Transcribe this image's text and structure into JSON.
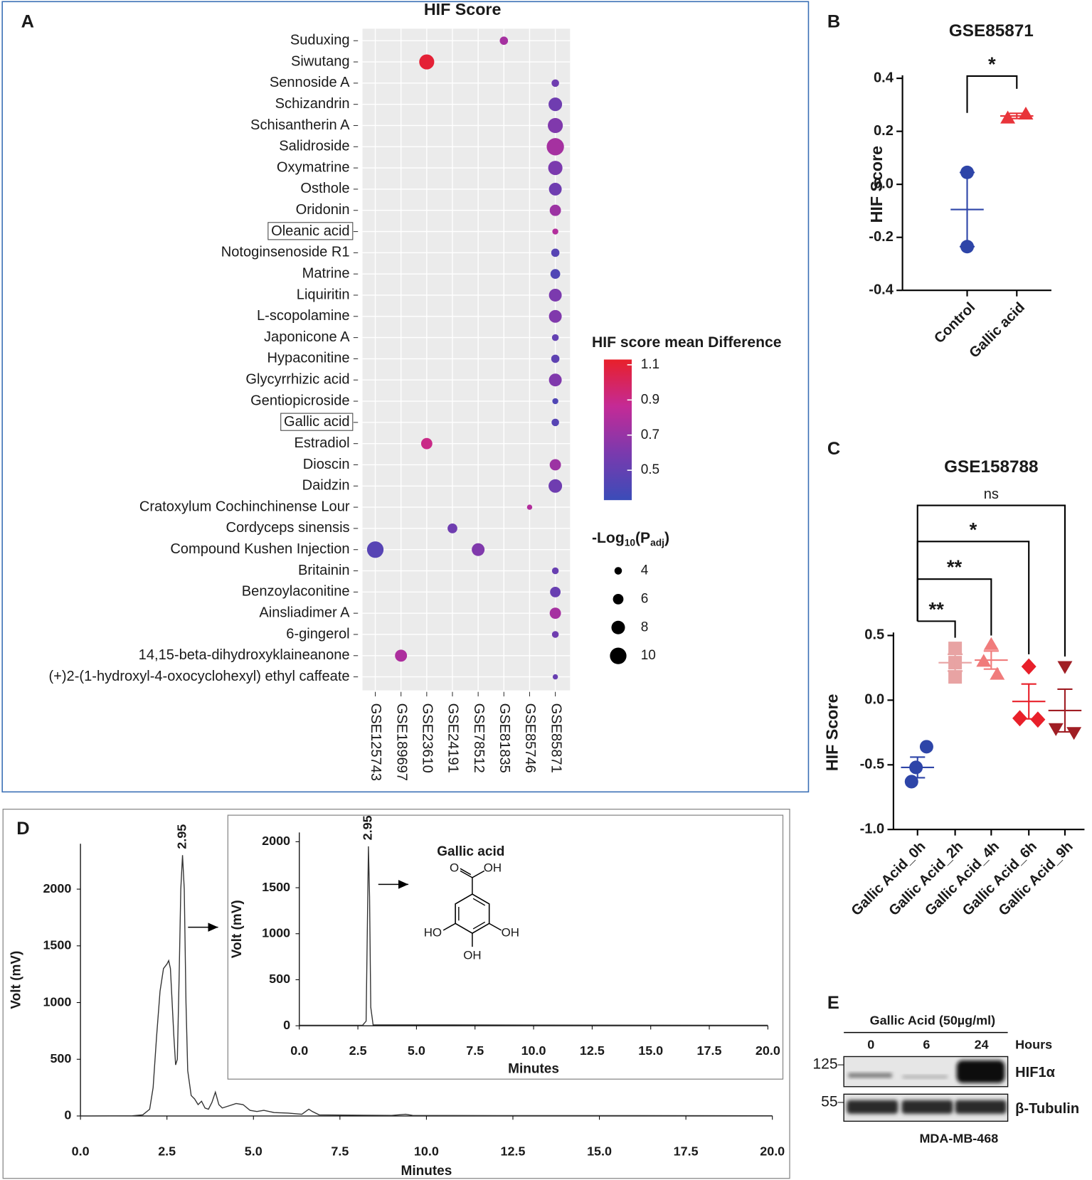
{
  "panel_labels": [
    "A",
    "B",
    "C",
    "D",
    "E"
  ],
  "chart_data": [
    {
      "type": "dot",
      "title": "HIF Score",
      "categories": [
        "Suduxing",
        "Siwutang",
        "Sennoside A",
        "Schizandrin",
        "Schisantherin A",
        "Salidroside",
        "Oxymatrine",
        "Osthole",
        "Oridonin",
        "Oleanic acid",
        "Notoginsenoside R1",
        "Matrine",
        "Liquiritin",
        "L-scopolamine",
        "Japonicone A",
        "Hypaconitine",
        "Glycyrrhizic acid",
        "Gentiopicroside",
        "Gallic acid",
        "Estradiol",
        "Dioscin",
        "Daidzin",
        "Cratoxylum Cochinchinense Lour",
        "Cordyceps sinensis",
        "Compound Kushen Injection",
        "Britainin",
        "Benzoylaconitine",
        "Ainsliadimer A",
        "6-gingerol",
        "14,15-beta-dihydroxyklaineanone",
        "(+)2-(1-hydroxyl-4-oxocyclohexyl) ethyl caffeate"
      ],
      "label_colors": [
        "#222222",
        "#e8202a",
        "#222222",
        "#222222",
        "#222222",
        "#e8202a",
        "#e8202a",
        "#222222",
        "#222222",
        "#222222",
        "#222222",
        "#e8202a",
        "#222222",
        "#222222",
        "#222222",
        "#222222",
        "#222222",
        "#e8202a",
        "#e8202a",
        "#222222",
        "#222222",
        "#222222",
        "#222222",
        "#e8202a",
        "#222222",
        "#222222",
        "#222222",
        "#222222",
        "#222222",
        "#222222",
        "#222222"
      ],
      "label_boxes": [
        false,
        false,
        false,
        false,
        false,
        false,
        false,
        false,
        false,
        true,
        false,
        false,
        false,
        false,
        false,
        false,
        false,
        false,
        true,
        false,
        false,
        false,
        false,
        false,
        false,
        false,
        false,
        false,
        false,
        false,
        false
      ],
      "x_categories": [
        "GSE125743",
        "GSE189697",
        "GSE23610",
        "GSE24191",
        "GSE78512",
        "GSE81835",
        "GSE85746",
        "GSE85871"
      ],
      "color_values": [
        [
          null,
          null,
          null,
          null,
          null,
          0.75,
          null,
          null
        ],
        [
          null,
          null,
          1.1,
          null,
          null,
          null,
          null,
          null
        ],
        [
          null,
          null,
          null,
          null,
          null,
          null,
          null,
          0.55
        ],
        [
          null,
          null,
          null,
          null,
          null,
          null,
          null,
          0.55
        ],
        [
          null,
          null,
          null,
          null,
          null,
          null,
          null,
          0.62
        ],
        [
          null,
          null,
          null,
          null,
          null,
          null,
          null,
          0.75
        ],
        [
          null,
          null,
          null,
          null,
          null,
          null,
          null,
          0.6
        ],
        [
          null,
          null,
          null,
          null,
          null,
          null,
          null,
          0.55
        ],
        [
          null,
          null,
          null,
          null,
          null,
          null,
          null,
          0.72
        ],
        [
          null,
          null,
          null,
          null,
          null,
          null,
          null,
          0.8
        ],
        [
          null,
          null,
          null,
          null,
          null,
          null,
          null,
          0.45
        ],
        [
          null,
          null,
          null,
          null,
          null,
          null,
          null,
          0.42
        ],
        [
          null,
          null,
          null,
          null,
          null,
          null,
          null,
          0.6
        ],
        [
          null,
          null,
          null,
          null,
          null,
          null,
          null,
          0.62
        ],
        [
          null,
          null,
          null,
          null,
          null,
          null,
          null,
          0.5
        ],
        [
          null,
          null,
          null,
          null,
          null,
          null,
          null,
          0.48
        ],
        [
          null,
          null,
          null,
          null,
          null,
          null,
          null,
          0.62
        ],
        [
          null,
          null,
          null,
          null,
          null,
          null,
          null,
          0.42
        ],
        [
          null,
          null,
          null,
          null,
          null,
          null,
          null,
          0.45
        ],
        [
          null,
          null,
          0.9,
          null,
          null,
          null,
          null,
          null
        ],
        [
          null,
          null,
          null,
          null,
          null,
          null,
          null,
          0.72
        ],
        [
          null,
          null,
          null,
          null,
          null,
          null,
          null,
          0.55
        ],
        [
          null,
          null,
          null,
          null,
          null,
          null,
          0.8,
          null
        ],
        [
          null,
          null,
          null,
          0.55,
          null,
          null,
          null,
          null
        ],
        [
          0.45,
          null,
          null,
          null,
          0.62,
          null,
          null,
          null
        ],
        [
          null,
          null,
          null,
          null,
          null,
          null,
          null,
          0.52
        ],
        [
          null,
          null,
          null,
          null,
          null,
          null,
          null,
          0.52
        ],
        [
          null,
          null,
          null,
          null,
          null,
          null,
          null,
          0.75
        ],
        [
          null,
          null,
          null,
          null,
          null,
          null,
          null,
          0.55
        ],
        [
          null,
          0.78,
          null,
          null,
          null,
          null,
          null,
          null
        ],
        [
          null,
          null,
          null,
          null,
          null,
          null,
          null,
          0.52
        ]
      ],
      "size_values": [
        [
          null,
          null,
          null,
          null,
          null,
          4.5,
          null,
          null
        ],
        [
          null,
          null,
          9,
          null,
          null,
          null,
          null,
          null
        ],
        [
          null,
          null,
          null,
          null,
          null,
          null,
          null,
          4
        ],
        [
          null,
          null,
          null,
          null,
          null,
          null,
          null,
          8
        ],
        [
          null,
          null,
          null,
          null,
          null,
          null,
          null,
          9
        ],
        [
          null,
          null,
          null,
          null,
          null,
          null,
          null,
          10.5
        ],
        [
          null,
          null,
          null,
          null,
          null,
          null,
          null,
          8.5
        ],
        [
          null,
          null,
          null,
          null,
          null,
          null,
          null,
          7.5
        ],
        [
          null,
          null,
          null,
          null,
          null,
          null,
          null,
          6.5
        ],
        [
          null,
          null,
          null,
          null,
          null,
          null,
          null,
          3
        ],
        [
          null,
          null,
          null,
          null,
          null,
          null,
          null,
          4.5
        ],
        [
          null,
          null,
          null,
          null,
          null,
          null,
          null,
          5.5
        ],
        [
          null,
          null,
          null,
          null,
          null,
          null,
          null,
          7.5
        ],
        [
          null,
          null,
          null,
          null,
          null,
          null,
          null,
          7.5
        ],
        [
          null,
          null,
          null,
          null,
          null,
          null,
          null,
          3.5
        ],
        [
          null,
          null,
          null,
          null,
          null,
          null,
          null,
          4.5
        ],
        [
          null,
          null,
          null,
          null,
          null,
          null,
          null,
          7.5
        ],
        [
          null,
          null,
          null,
          null,
          null,
          null,
          null,
          3
        ],
        [
          null,
          null,
          null,
          null,
          null,
          null,
          null,
          4
        ],
        [
          null,
          null,
          6.5,
          null,
          null,
          null,
          null,
          null
        ],
        [
          null,
          null,
          null,
          null,
          null,
          null,
          null,
          6.5
        ],
        [
          null,
          null,
          null,
          null,
          null,
          null,
          null,
          8
        ],
        [
          null,
          null,
          null,
          null,
          null,
          null,
          2.5,
          null
        ],
        [
          null,
          null,
          null,
          5.5,
          null,
          null,
          null,
          null
        ],
        [
          10,
          null,
          null,
          null,
          7.5,
          null,
          null,
          null
        ],
        [
          null,
          null,
          null,
          null,
          null,
          null,
          null,
          3.5
        ],
        [
          null,
          null,
          null,
          null,
          null,
          null,
          null,
          6
        ],
        [
          null,
          null,
          null,
          null,
          null,
          null,
          null,
          6.5
        ],
        [
          null,
          null,
          null,
          null,
          null,
          null,
          null,
          3.5
        ],
        [
          null,
          7,
          null,
          null,
          null,
          null,
          null,
          null
        ],
        [
          null,
          null,
          null,
          null,
          null,
          null,
          null,
          2.5
        ]
      ],
      "grid": true,
      "colorbar": {
        "title": "HIF score mean Difference",
        "lim": [
          0.33,
          1.13
        ],
        "ticks": [
          0.5,
          0.7,
          0.9,
          1.1
        ],
        "colors": [
          "#3b4cb8",
          "#7a3aae",
          "#c42a96",
          "#e8202a"
        ]
      },
      "size_legend": {
        "title_parts": [
          "-Log",
          "10",
          "(P",
          "adj",
          ")"
        ],
        "ticks": [
          4,
          6,
          8,
          10
        ],
        "color": "#000000"
      }
    },
    {
      "type": "dot_plot",
      "title": "GSE85871",
      "ylabel": "HIF Score",
      "categories": [
        "Control",
        "Gallic acid"
      ],
      "values": [
        [
          0.045,
          -0.235
        ],
        [
          0.25,
          0.265
        ]
      ],
      "means": [
        -0.095,
        0.258
      ],
      "errors": [
        0.14,
        0.01
      ],
      "colors": [
        "#2e45a8",
        "#e8343a"
      ],
      "markers": [
        "circle",
        "triangle"
      ],
      "significance": [
        null,
        "*"
      ],
      "ylim": [
        -0.4,
        0.4
      ],
      "yticks": [
        0.4,
        0.2,
        {
          "value": 0,
          "label": "0.0"
        },
        -0.2,
        -0.4
      ]
    },
    {
      "type": "dot_plot",
      "title": "GSE158788",
      "ylabel": "HIF Score",
      "categories": [
        "Gallic Acid_0h",
        "Gallic Acid_2h",
        "Gallic Acid_4h",
        "Gallic Acid_6h",
        "Gallic Acid_9h"
      ],
      "values": [
        [
          -0.36,
          -0.52,
          -0.63
        ],
        [
          0.4,
          0.29,
          0.18
        ],
        [
          0.43,
          0.3,
          0.2
        ],
        [
          0.26,
          -0.14,
          -0.15
        ],
        [
          0.26,
          -0.22,
          -0.25
        ]
      ],
      "means": [
        -0.52,
        0.29,
        0.31,
        -0.01,
        -0.08
      ],
      "errors": [
        0.08,
        0.065,
        0.07,
        0.135,
        0.165
      ],
      "colors": [
        "#2e45a8",
        "#e8a3a3",
        "#f07b7b",
        "#e8202a",
        "#a01e24"
      ],
      "markers": [
        "circle",
        "square",
        "triangle",
        "diamond",
        "triangle-down"
      ],
      "significance": [
        null,
        "**",
        "**",
        "*",
        "ns"
      ],
      "ylim": [
        -1,
        0.5
      ],
      "yticks": [
        0.5,
        {
          "value": 0,
          "label": "0.0"
        },
        -0.5,
        {
          "value": -1,
          "label": "-1.0"
        }
      ]
    },
    {
      "type": "line",
      "xlabel": "Minutes",
      "ylabel": "Volt (mV)",
      "color": "#333333",
      "peak_label": 2.95,
      "x": [
        0,
        1.5,
        1.8,
        2.0,
        2.1,
        2.2,
        2.3,
        2.4,
        2.5,
        2.55,
        2.6,
        2.7,
        2.75,
        2.8,
        2.85,
        2.9,
        2.95,
        3.0,
        3.05,
        3.1,
        3.2,
        3.3,
        3.4,
        3.5,
        3.6,
        3.7,
        3.8,
        3.9,
        4.0,
        4.1,
        4.3,
        4.5,
        4.7,
        4.9,
        5.1,
        5.3,
        5.6,
        6.0,
        6.4,
        6.6,
        6.7,
        6.9,
        7.5,
        9.0,
        9.4,
        9.6,
        12,
        16,
        20
      ],
      "values": [
        0,
        2,
        10,
        60,
        250,
        700,
        1100,
        1300,
        1340,
        1370,
        1300,
        700,
        450,
        500,
        1200,
        2000,
        2300,
        2000,
        1000,
        400,
        180,
        150,
        100,
        130,
        70,
        60,
        120,
        210,
        100,
        70,
        90,
        110,
        100,
        50,
        40,
        50,
        30,
        25,
        15,
        60,
        40,
        10,
        8,
        5,
        15,
        5,
        3,
        3,
        2
      ],
      "xlim": [
        0,
        20
      ],
      "ylim": [
        0,
        2400
      ],
      "xticks": [
        {
          "value": 0,
          "label": "0.0"
        },
        2.5,
        {
          "value": 5,
          "label": "5.0"
        },
        7.5,
        {
          "value": 10,
          "label": "10.0"
        },
        12.5,
        {
          "value": 15,
          "label": "15.0"
        },
        17.5,
        {
          "value": 20,
          "label": "20.0"
        }
      ],
      "yticks": [
        0,
        500,
        1000,
        1500,
        2000
      ]
    },
    {
      "type": "line",
      "xlabel": "Minutes",
      "ylabel": "Volt (mV)",
      "color": "#333333",
      "peak_label": 2.95,
      "compound": "Gallic acid",
      "structure_labels": [
        "O",
        "OH",
        "HO",
        "OH",
        "OH"
      ],
      "x": [
        0,
        2.7,
        2.85,
        2.92,
        2.95,
        3.0,
        3.05,
        3.15,
        20
      ],
      "values": [
        5,
        5,
        50,
        1400,
        1950,
        1400,
        200,
        10,
        5
      ],
      "xlim": [
        0,
        20
      ],
      "ylim": [
        0,
        2100
      ],
      "xticks": [
        {
          "value": 0,
          "label": "0.0"
        },
        2.5,
        {
          "value": 5,
          "label": "5.0"
        },
        7.5,
        {
          "value": 10,
          "label": "10.0"
        },
        12.5,
        {
          "value": 15,
          "label": "15.0"
        },
        17.5,
        {
          "value": 20,
          "label": "20.0"
        }
      ],
      "yticks": [
        0,
        500,
        1000,
        1500,
        2000
      ]
    }
  ],
  "blot": {
    "title": "Gallic Acid (50µg/ml)",
    "lanes": [
      "0",
      "6",
      "24"
    ],
    "lane_unit": "Hours",
    "markers": [
      "125",
      "55"
    ],
    "bands": [
      "HIF1α",
      "β-Tubulin"
    ],
    "cell_line": "MDA-MB-468"
  }
}
